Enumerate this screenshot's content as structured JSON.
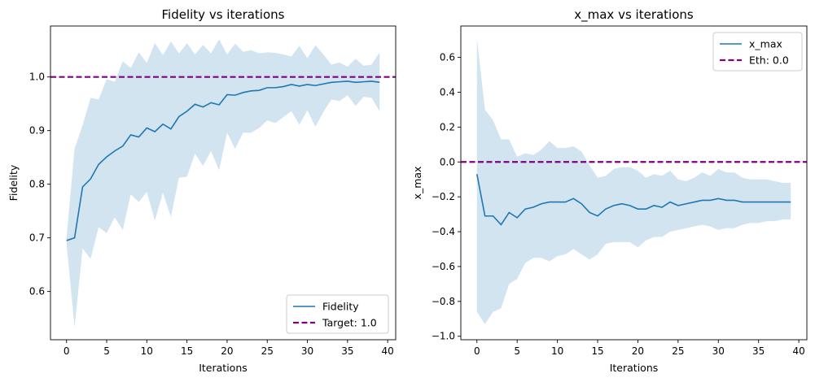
{
  "chart_data": [
    {
      "type": "line",
      "title": "Fidelity vs iterations",
      "xlabel": "Iterations",
      "ylabel": "Fidelity",
      "xlim": [
        -2,
        41
      ],
      "ylim": [
        0.51,
        1.095
      ],
      "xticks": [
        0,
        5,
        10,
        15,
        20,
        25,
        30,
        35,
        40
      ],
      "yticks": [
        0.6,
        0.7,
        0.8,
        0.9,
        1.0
      ],
      "xtick_labels": [
        "0",
        "5",
        "10",
        "15",
        "20",
        "25",
        "30",
        "35",
        "40"
      ],
      "ytick_labels": [
        "0.6",
        "0.7",
        "0.8",
        "0.9",
        "1.0"
      ],
      "legend_position": "lower-right",
      "grid": false,
      "x": [
        0,
        1,
        2,
        3,
        4,
        5,
        6,
        7,
        8,
        9,
        10,
        11,
        12,
        13,
        14,
        15,
        16,
        17,
        18,
        19,
        20,
        21,
        22,
        23,
        24,
        25,
        26,
        27,
        28,
        29,
        30,
        31,
        32,
        33,
        34,
        35,
        36,
        37,
        38,
        39
      ],
      "series": [
        {
          "name": "Fidelity",
          "color": "#1f77b4",
          "values": [
            0.695,
            0.7,
            0.795,
            0.81,
            0.837,
            0.851,
            0.862,
            0.871,
            0.892,
            0.888,
            0.905,
            0.898,
            0.912,
            0.903,
            0.926,
            0.936,
            0.949,
            0.944,
            0.952,
            0.948,
            0.967,
            0.966,
            0.971,
            0.974,
            0.975,
            0.98,
            0.98,
            0.982,
            0.986,
            0.983,
            0.986,
            0.984,
            0.987,
            0.99,
            0.991,
            0.992,
            0.99,
            0.991,
            0.992,
            0.99
          ],
          "band_lower": [
            0.69,
            0.533,
            0.68,
            0.661,
            0.72,
            0.709,
            0.738,
            0.715,
            0.781,
            0.767,
            0.786,
            0.732,
            0.784,
            0.739,
            0.812,
            0.814,
            0.857,
            0.834,
            0.862,
            0.826,
            0.896,
            0.866,
            0.896,
            0.896,
            0.905,
            0.919,
            0.914,
            0.925,
            0.936,
            0.911,
            0.938,
            0.907,
            0.935,
            0.958,
            0.955,
            0.966,
            0.946,
            0.963,
            0.961,
            0.936
          ],
          "band_upper": [
            0.7,
            0.866,
            0.91,
            0.961,
            0.958,
            0.996,
            0.991,
            1.029,
            1.017,
            1.046,
            1.026,
            1.063,
            1.041,
            1.066,
            1.044,
            1.063,
            1.042,
            1.06,
            1.044,
            1.07,
            1.042,
            1.062,
            1.047,
            1.05,
            1.044,
            1.046,
            1.045,
            1.042,
            1.038,
            1.058,
            1.035,
            1.059,
            1.042,
            1.023,
            1.027,
            1.019,
            1.034,
            1.021,
            1.023,
            1.046
          ],
          "band_color": "#1f77b4"
        },
        {
          "name": "Target: 1.0",
          "color": "#800080",
          "style": "dashed",
          "y": 1.0
        }
      ]
    },
    {
      "type": "line",
      "title": "x_max vs iterations",
      "xlabel": "Iterations",
      "ylabel": "x_max",
      "xlim": [
        -2,
        41
      ],
      "ylim": [
        -1.02,
        0.78
      ],
      "xticks": [
        0,
        5,
        10,
        15,
        20,
        25,
        30,
        35,
        40
      ],
      "yticks": [
        -1.0,
        -0.8,
        -0.6,
        -0.4,
        -0.2,
        0.0,
        0.2,
        0.4,
        0.6
      ],
      "xtick_labels": [
        "0",
        "5",
        "10",
        "15",
        "20",
        "25",
        "30",
        "35",
        "40"
      ],
      "ytick_labels": [
        "−1.0",
        "−0.8",
        "−0.6",
        "−0.4",
        "−0.2",
        "0.0",
        "0.2",
        "0.4",
        "0.6"
      ],
      "legend_position": "upper-right",
      "grid": false,
      "x": [
        0,
        1,
        2,
        3,
        4,
        5,
        6,
        7,
        8,
        9,
        10,
        11,
        12,
        13,
        14,
        15,
        16,
        17,
        18,
        19,
        20,
        21,
        22,
        23,
        24,
        25,
        26,
        27,
        28,
        29,
        30,
        31,
        32,
        33,
        34,
        35,
        36,
        37,
        38,
        39
      ],
      "series": [
        {
          "name": "x_max",
          "color": "#1f77b4",
          "values": [
            -0.07,
            -0.31,
            -0.31,
            -0.36,
            -0.29,
            -0.32,
            -0.27,
            -0.26,
            -0.24,
            -0.23,
            -0.23,
            -0.23,
            -0.21,
            -0.24,
            -0.29,
            -0.31,
            -0.27,
            -0.25,
            -0.24,
            -0.25,
            -0.27,
            -0.27,
            -0.25,
            -0.26,
            -0.23,
            -0.25,
            -0.24,
            -0.23,
            -0.22,
            -0.22,
            -0.21,
            -0.22,
            -0.22,
            -0.23,
            -0.23,
            -0.23,
            -0.23,
            -0.23,
            -0.23,
            -0.23
          ],
          "band_lower": [
            -0.86,
            -0.93,
            -0.86,
            -0.84,
            -0.7,
            -0.67,
            -0.58,
            -0.55,
            -0.55,
            -0.57,
            -0.54,
            -0.53,
            -0.5,
            -0.53,
            -0.56,
            -0.53,
            -0.47,
            -0.46,
            -0.46,
            -0.46,
            -0.49,
            -0.45,
            -0.43,
            -0.43,
            -0.4,
            -0.39,
            -0.38,
            -0.37,
            -0.36,
            -0.37,
            -0.39,
            -0.38,
            -0.38,
            -0.36,
            -0.35,
            -0.35,
            -0.34,
            -0.34,
            -0.33,
            -0.33
          ],
          "band_upper": [
            0.71,
            0.3,
            0.24,
            0.13,
            0.13,
            0.03,
            0.05,
            0.04,
            0.07,
            0.12,
            0.08,
            0.08,
            0.09,
            0.06,
            -0.02,
            -0.09,
            -0.08,
            -0.04,
            -0.03,
            -0.03,
            -0.05,
            -0.09,
            -0.07,
            -0.08,
            -0.05,
            -0.1,
            -0.11,
            -0.09,
            -0.06,
            -0.08,
            -0.04,
            -0.06,
            -0.06,
            -0.09,
            -0.1,
            -0.1,
            -0.1,
            -0.11,
            -0.12,
            -0.12
          ],
          "band_color": "#1f77b4"
        },
        {
          "name": "Eth: 0.0",
          "color": "#800080",
          "style": "dashed",
          "y": 0.0
        }
      ]
    }
  ]
}
